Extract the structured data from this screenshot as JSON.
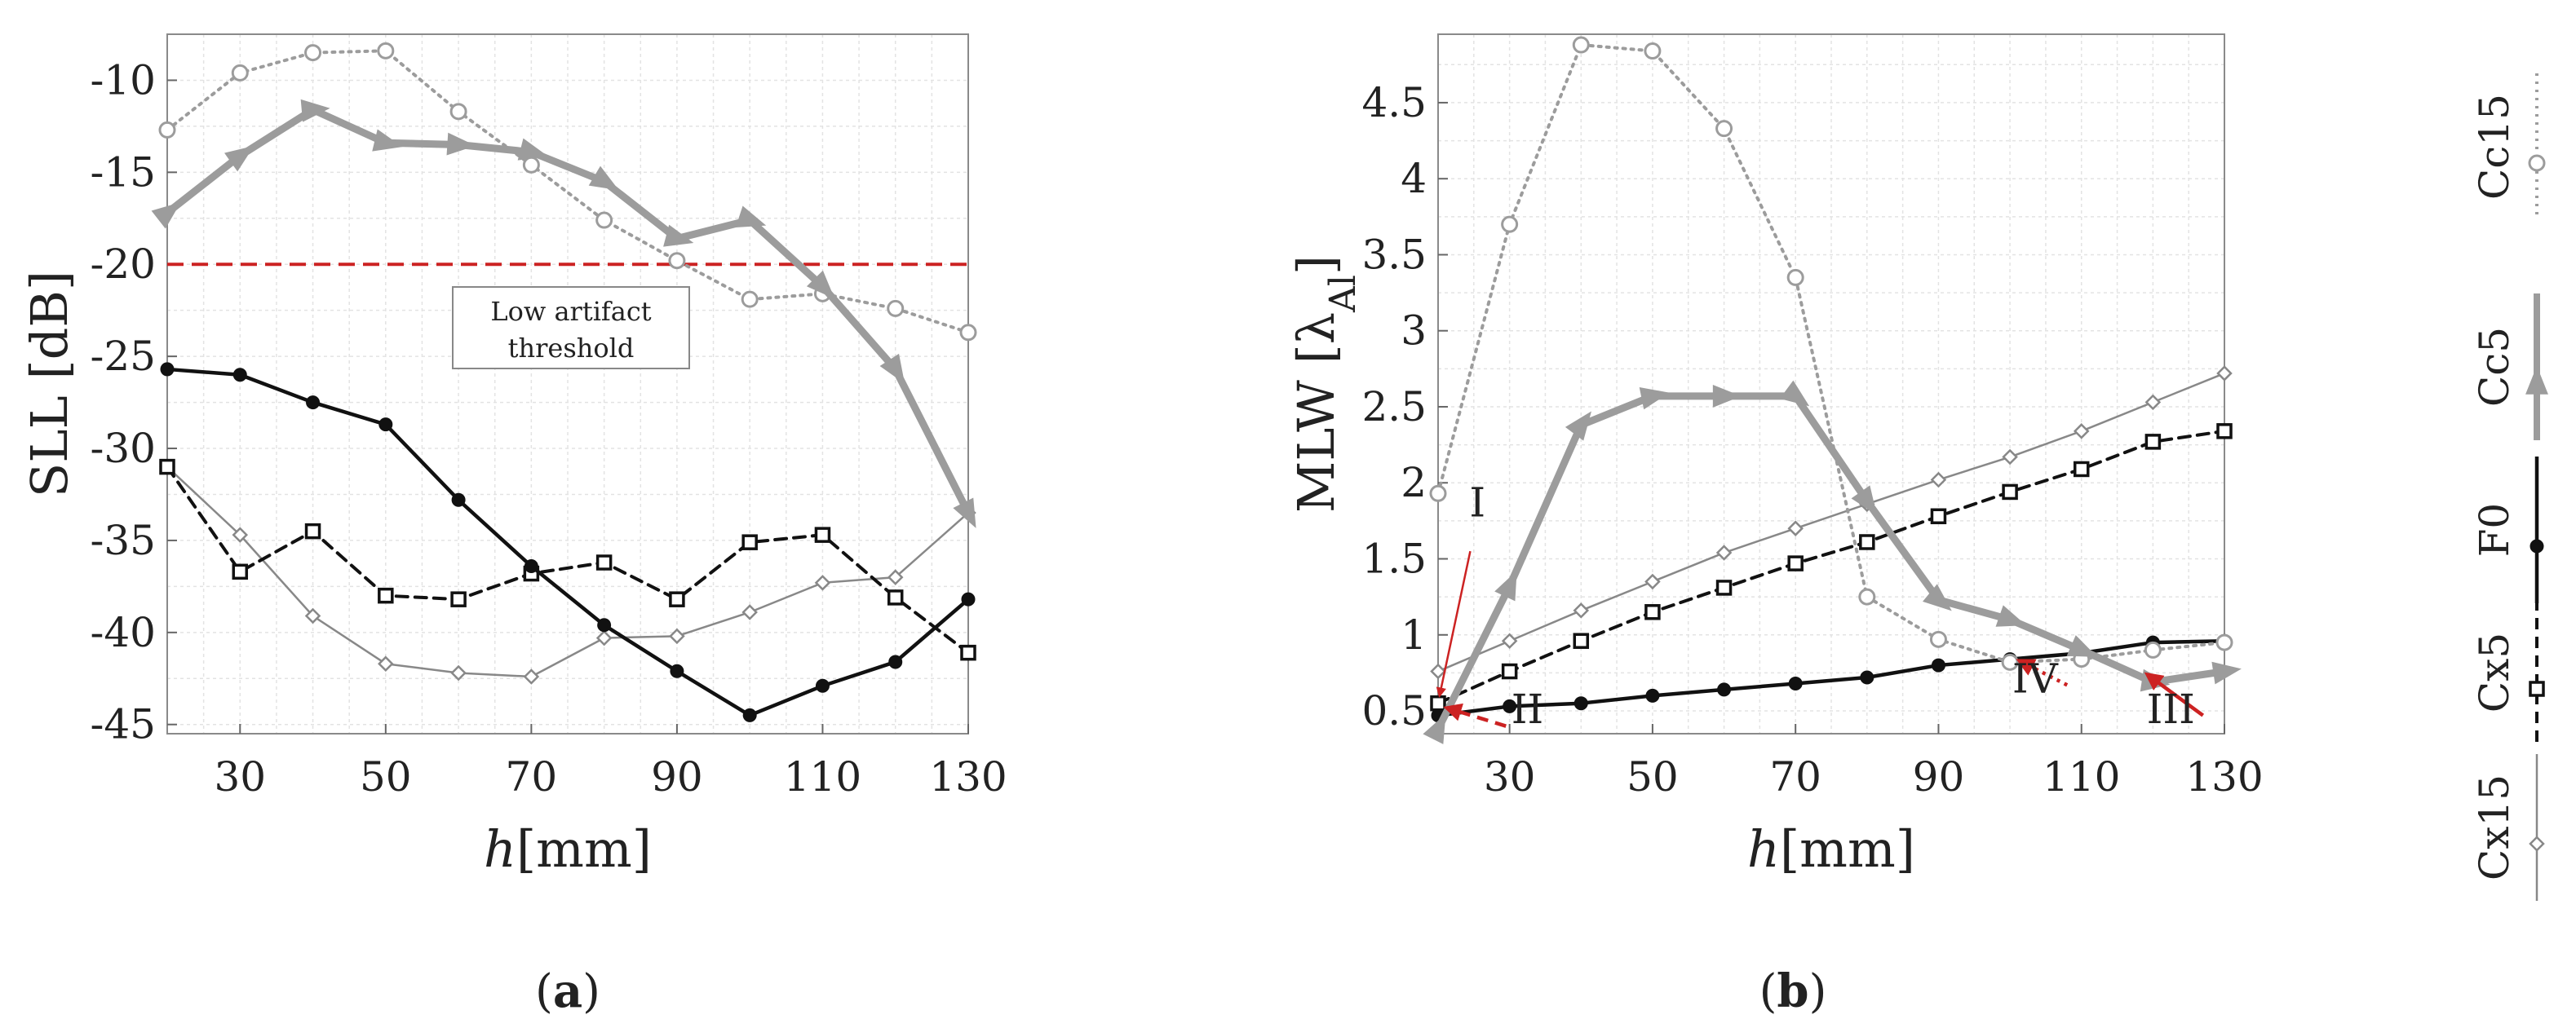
{
  "chart_data": [
    {
      "type": "line",
      "panel_label": "a",
      "xlabel_var": "h",
      "xlabel_unit": "[mm]",
      "ylabel": "SLL [dB]",
      "xlim": [
        20,
        130
      ],
      "ylim": [
        -45.5,
        -7.5
      ],
      "xticks": [
        30,
        50,
        70,
        90,
        110,
        130
      ],
      "yticks": [
        -10,
        -15,
        -20,
        -25,
        -30,
        -35,
        -40,
        -45
      ],
      "x": [
        20,
        30,
        40,
        50,
        60,
        70,
        80,
        90,
        100,
        110,
        120,
        130
      ],
      "series": [
        {
          "name": "Cc15",
          "key": "Cc15",
          "values": [
            -12.7,
            -9.6,
            -8.5,
            -8.4,
            -11.7,
            -14.6,
            -17.6,
            -19.8,
            -21.9,
            -21.6,
            -22.4,
            -23.7
          ]
        },
        {
          "name": "Cc5",
          "key": "Cc5",
          "values": [
            -17.2,
            -14.1,
            -11.6,
            -13.4,
            -13.5,
            -13.9,
            -15.5,
            -18.6,
            -17.6,
            -21.2,
            -25.7,
            -33.5
          ]
        },
        {
          "name": "F0",
          "key": "F0",
          "values": [
            -25.7,
            -26.0,
            -27.5,
            -28.7,
            -32.8,
            -36.4,
            -39.6,
            -42.1,
            -44.5,
            -42.9,
            -41.6,
            -38.2
          ]
        },
        {
          "name": "Cx5",
          "key": "Cx5",
          "values": [
            -31.0,
            -36.7,
            -34.5,
            -38.0,
            -38.2,
            -36.8,
            -36.2,
            -38.2,
            -35.1,
            -34.7,
            -38.1,
            -41.1
          ]
        },
        {
          "name": "Cx15",
          "key": "Cx15",
          "values": [
            -31.0,
            -34.7,
            -39.1,
            -41.7,
            -42.2,
            -42.4,
            -40.3,
            -40.2,
            -38.9,
            -37.3,
            -37.0,
            -33.5
          ]
        }
      ],
      "threshold": {
        "value": -20,
        "color": "#cc2222",
        "label_line1": "Low artifact",
        "label_line2": "threshold"
      }
    },
    {
      "type": "line",
      "panel_label": "b",
      "xlabel_var": "h",
      "xlabel_unit": "[mm]",
      "ylabel": "MLW [λ",
      "ylabel_sub": "Al",
      "ylabel_end": "]",
      "xlim": [
        20,
        130
      ],
      "ylim": [
        0.35,
        4.95
      ],
      "xticks": [
        30,
        50,
        70,
        90,
        110,
        130
      ],
      "yticks": [
        0.5,
        1,
        1.5,
        2,
        2.5,
        3,
        3.5,
        4,
        4.5
      ],
      "x": [
        20,
        30,
        40,
        50,
        60,
        70,
        80,
        90,
        100,
        110,
        120,
        130
      ],
      "series": [
        {
          "name": "Cc15",
          "key": "Cc15",
          "values": [
            1.93,
            3.7,
            4.88,
            4.84,
            4.33,
            3.35,
            1.25,
            0.97,
            0.82,
            0.84,
            0.9,
            0.95
          ]
        },
        {
          "name": "Cc5",
          "key": "Cc5",
          "values": [
            0.38,
            1.32,
            2.38,
            2.57,
            2.57,
            2.57,
            1.88,
            1.23,
            1.1,
            0.9,
            0.69,
            0.76
          ]
        },
        {
          "name": "F0",
          "key": "F0",
          "values": [
            0.47,
            0.53,
            0.55,
            0.6,
            0.64,
            0.68,
            0.72,
            0.8,
            0.84,
            0.88,
            0.95,
            0.96
          ]
        },
        {
          "name": "Cx5",
          "key": "Cx5",
          "values": [
            0.55,
            0.76,
            0.96,
            1.15,
            1.31,
            1.47,
            1.61,
            1.78,
            1.94,
            2.09,
            2.27,
            2.34
          ]
        },
        {
          "name": "Cx15",
          "key": "Cx15",
          "values": [
            0.76,
            0.96,
            1.16,
            1.35,
            1.54,
            1.7,
            1.86,
            2.02,
            2.17,
            2.34,
            2.53,
            2.72
          ]
        }
      ],
      "annotations": [
        {
          "label": "I",
          "style": "solid",
          "text_at": [
            25.5,
            1.78
          ],
          "from": [
            24.5,
            1.55
          ],
          "to": [
            20.2,
            0.6
          ]
        },
        {
          "label": "II",
          "style": "dashed",
          "text_at": [
            32.5,
            0.42
          ],
          "from": [
            29.5,
            0.4
          ],
          "to": [
            21.2,
            0.52
          ]
        },
        {
          "label": "IV",
          "style": "dotted",
          "text_at": [
            103.5,
            0.62
          ],
          "from": [
            108.0,
            0.67
          ],
          "to": [
            101.3,
            0.83
          ]
        },
        {
          "label": "III",
          "style": "solid",
          "text_at": [
            122.5,
            0.42
          ],
          "from": [
            127.0,
            0.47
          ],
          "to": [
            119.2,
            0.74
          ]
        }
      ]
    }
  ],
  "legend": {
    "placement": "right",
    "entries": [
      {
        "key": "Cc15",
        "label": "Cc15"
      },
      {
        "key": "Cc5",
        "label": "Cc5"
      },
      {
        "key": "F0",
        "label": "F0"
      },
      {
        "key": "Cx5",
        "label": "Cx5"
      },
      {
        "key": "Cx15",
        "label": "Cx15"
      }
    ]
  },
  "colors": {
    "gray_series": "#9c9c9c",
    "dark_gray_series": "#888888",
    "black_series": "#111111",
    "red_accent": "#cc2222",
    "frame": "#8a8a8a",
    "grid": "#e3e3e3"
  }
}
